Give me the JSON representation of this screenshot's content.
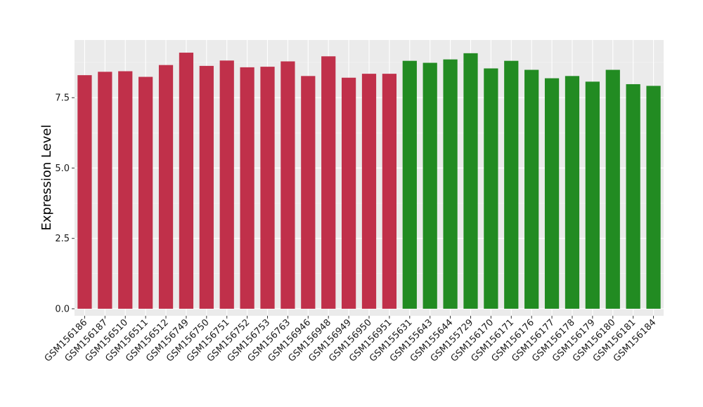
{
  "colors": {
    "panel_bg": "#ebebeb",
    "grid_major": "#ffffff",
    "grid_minor": "#f5f5f5",
    "group_1": "#c0304a",
    "group_2": "#228b22",
    "text": "#1a1a1a"
  },
  "chart_data": {
    "type": "bar",
    "title": "",
    "xlabel": "",
    "ylabel": "Expression Level",
    "ylim": [
      -0.25,
      9.55
    ],
    "y_ticks": [
      0.0,
      2.5,
      5.0,
      7.5
    ],
    "y_tick_labels": [
      "0.0",
      "2.5",
      "5.0",
      "7.5"
    ],
    "grid": true,
    "legend": "none",
    "categories": [
      "GSM156186",
      "GSM156187",
      "GSM156510",
      "GSM156511",
      "GSM156512",
      "GSM156749",
      "GSM156750",
      "GSM156751",
      "GSM156752",
      "GSM156753",
      "GSM156763",
      "GSM156946",
      "GSM156948",
      "GSM156949",
      "GSM156950",
      "GSM156951",
      "GSM155631",
      "GSM155643",
      "GSM155644",
      "GSM155729",
      "GSM156170",
      "GSM156171",
      "GSM156176",
      "GSM156177",
      "GSM156178",
      "GSM156179",
      "GSM156180",
      "GSM156181",
      "GSM156184"
    ],
    "values": [
      8.3,
      8.42,
      8.44,
      8.24,
      8.66,
      9.1,
      8.63,
      8.82,
      8.58,
      8.6,
      8.79,
      8.27,
      8.97,
      8.21,
      8.35,
      8.35,
      8.81,
      8.74,
      8.86,
      9.08,
      8.54,
      8.81,
      8.49,
      8.19,
      8.27,
      8.07,
      8.49,
      7.98,
      7.92
    ],
    "bar_colors": [
      "#c0304a",
      "#c0304a",
      "#c0304a",
      "#c0304a",
      "#c0304a",
      "#c0304a",
      "#c0304a",
      "#c0304a",
      "#c0304a",
      "#c0304a",
      "#c0304a",
      "#c0304a",
      "#c0304a",
      "#c0304a",
      "#c0304a",
      "#c0304a",
      "#228b22",
      "#228b22",
      "#228b22",
      "#228b22",
      "#228b22",
      "#228b22",
      "#228b22",
      "#228b22",
      "#228b22",
      "#228b22",
      "#228b22",
      "#228b22",
      "#228b22"
    ]
  }
}
